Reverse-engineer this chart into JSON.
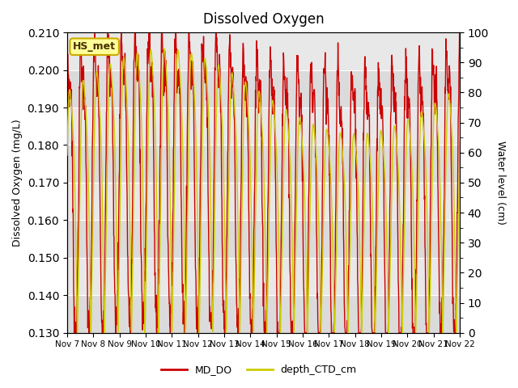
{
  "title": "Dissolved Oxygen",
  "ylabel_left": "Dissolved Oxygen (mg/L)",
  "ylabel_right": "Water level (cm)",
  "ylim_left": [
    0.13,
    0.21
  ],
  "ylim_right": [
    0,
    100
  ],
  "label_box": "HS_met",
  "legend_labels": [
    "MD_DO",
    "depth_CTD_cm"
  ],
  "line_colors": [
    "#cc0000",
    "#cccc00"
  ],
  "background_color": "#e8e8e8",
  "xtick_labels": [
    "Nov 7",
    "Nov 8",
    "Nov 9",
    "Nov 10",
    "Nov 11",
    "Nov 12",
    "Nov 13",
    "Nov 14",
    "Nov 15",
    "Nov 16",
    "Nov 17",
    "Nov 18",
    "Nov 19",
    "Nov 20",
    "Nov 21",
    "Nov 22"
  ],
  "yticks_left": [
    0.13,
    0.14,
    0.15,
    0.16,
    0.17,
    0.18,
    0.19,
    0.2,
    0.21
  ],
  "yticks_right": [
    0,
    10,
    20,
    30,
    40,
    50,
    60,
    70,
    80,
    90,
    100
  ],
  "figsize": [
    6.4,
    4.8
  ],
  "dpi": 100
}
